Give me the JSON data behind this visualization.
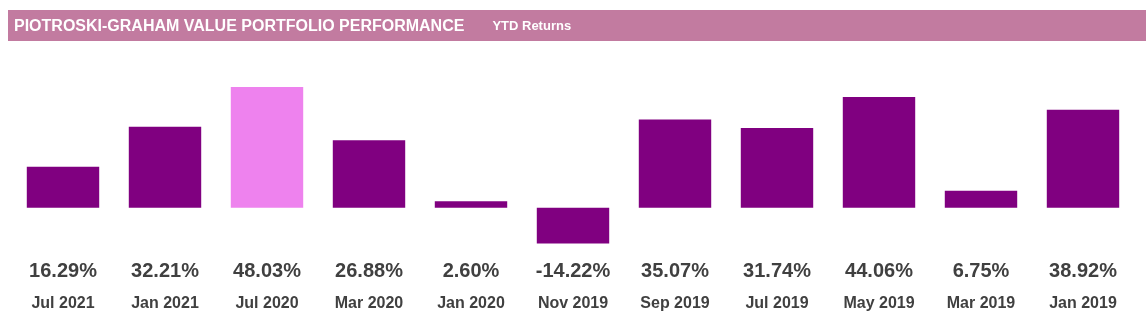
{
  "chart_data": {
    "type": "bar",
    "title": "PIOTROSKI-GRAHAM VALUE PORTFOLIO PERFORMANCE",
    "subtitle": "YTD Returns",
    "categories": [
      "Jul 2021",
      "Jan 2021",
      "Jul 2020",
      "Mar 2020",
      "Jan 2020",
      "Nov 2019",
      "Sep 2019",
      "Jul 2019",
      "May 2019",
      "Mar 2019",
      "Jan 2019"
    ],
    "values": [
      16.29,
      32.21,
      48.03,
      26.88,
      2.6,
      -14.22,
      35.07,
      31.74,
      44.06,
      6.75,
      38.92
    ],
    "value_labels": [
      "16.29%",
      "32.21%",
      "48.03%",
      "26.88%",
      "2.60%",
      "-14.22%",
      "35.07%",
      "31.74%",
      "44.06%",
      "6.75%",
      "38.92%"
    ],
    "colors": [
      "#800080",
      "#800080",
      "#ee82ee",
      "#800080",
      "#800080",
      "#800080",
      "#800080",
      "#800080",
      "#800080",
      "#800080",
      "#800080"
    ],
    "grid": false
  }
}
